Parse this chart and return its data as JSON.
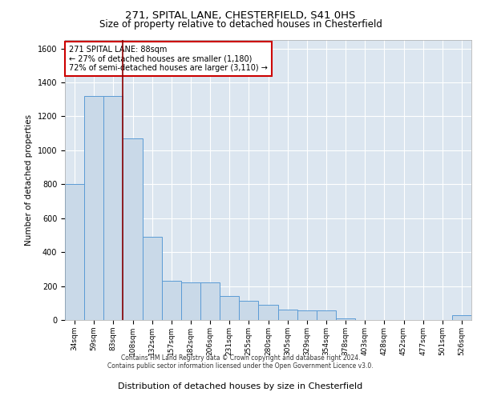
{
  "title1": "271, SPITAL LANE, CHESTERFIELD, S41 0HS",
  "title2": "Size of property relative to detached houses in Chesterfield",
  "xlabel": "Distribution of detached houses by size in Chesterfield",
  "ylabel": "Number of detached properties",
  "categories": [
    "34sqm",
    "59sqm",
    "83sqm",
    "108sqm",
    "132sqm",
    "157sqm",
    "182sqm",
    "206sqm",
    "231sqm",
    "255sqm",
    "280sqm",
    "305sqm",
    "329sqm",
    "354sqm",
    "378sqm",
    "403sqm",
    "428sqm",
    "452sqm",
    "477sqm",
    "501sqm",
    "526sqm"
  ],
  "values": [
    800,
    1320,
    1320,
    1070,
    490,
    230,
    220,
    220,
    140,
    115,
    90,
    60,
    55,
    55,
    10,
    0,
    0,
    0,
    0,
    0,
    30
  ],
  "bar_color": "#c9d9e8",
  "bar_edge_color": "#5b9bd5",
  "ylim": [
    0,
    1650
  ],
  "yticks": [
    0,
    200,
    400,
    600,
    800,
    1000,
    1200,
    1400,
    1600
  ],
  "vline_x": 2.5,
  "vline_color": "#8b0000",
  "annotation_title": "271 SPITAL LANE: 88sqm",
  "annotation_line1": "← 27% of detached houses are smaller (1,180)",
  "annotation_line2": "72% of semi-detached houses are larger (3,110) →",
  "annotation_box_color": "#ffffff",
  "annotation_box_edge": "#cc0000",
  "bg_color": "#dce6f0",
  "footer1": "Contains HM Land Registry data © Crown copyright and database right 2024.",
  "footer2": "Contains public sector information licensed under the Open Government Licence v3.0."
}
